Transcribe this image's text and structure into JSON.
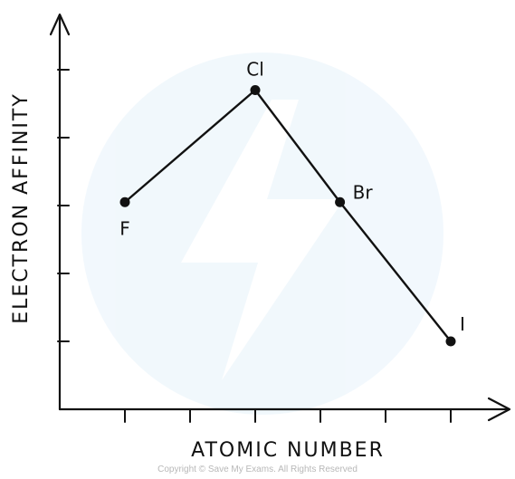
{
  "chart_data": {
    "type": "line",
    "title": "",
    "xlabel": "ATOMIC NUMBER",
    "ylabel": "ELECTRON AFFINITY",
    "grid": false,
    "legend": "none",
    "axis_ticks_labeled": false,
    "x_ticks": [
      1,
      2,
      3,
      4,
      5,
      6
    ],
    "y_ticks": [
      1,
      2,
      3,
      4,
      5
    ],
    "xlim": [
      0,
      6.5
    ],
    "ylim": [
      0,
      5.5
    ],
    "series": [
      {
        "points": [
          {
            "label": "F",
            "x": 1,
            "y": 3.05
          },
          {
            "label": "Cl",
            "x": 3,
            "y": 4.7
          },
          {
            "label": "Br",
            "x": 4.3,
            "y": 3.05
          },
          {
            "label": "I",
            "x": 6,
            "y": 1.0
          }
        ]
      }
    ],
    "colors": {
      "line": "#111111",
      "axes": "#111111"
    }
  },
  "footer": {
    "copyright": "Copyright © Save My Exams. All Rights Reserved"
  }
}
